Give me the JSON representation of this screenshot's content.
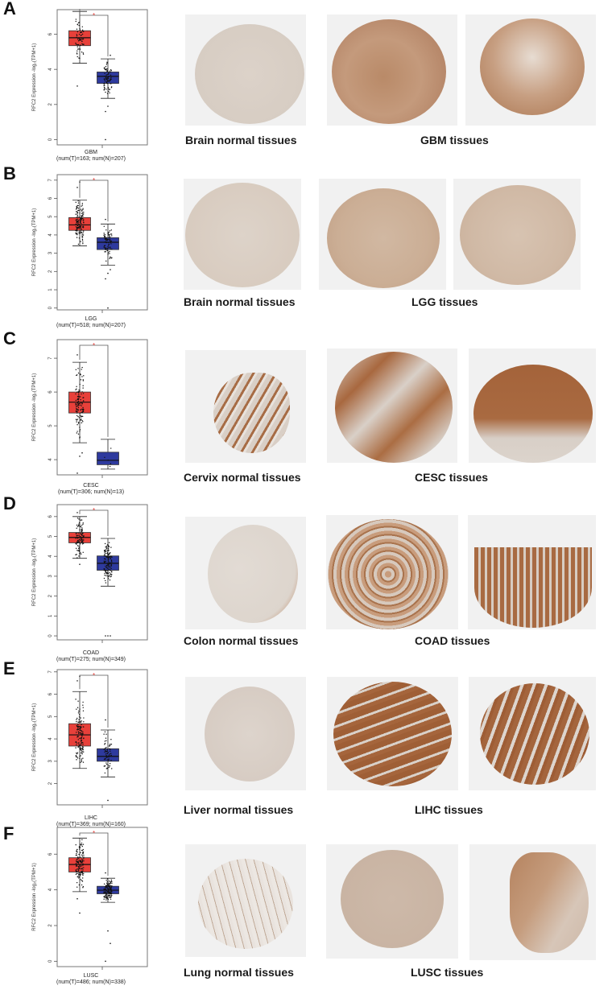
{
  "figure": {
    "gene": "RFC2",
    "ylabel": "RFC2 Expression -log₂(TPM+1)",
    "significance_marker": "*",
    "tumor_color": "#e8403a",
    "normal_color": "#2e3a9e"
  },
  "panels": [
    {
      "letter": "A",
      "cancer": "GBM",
      "counts": "(num(T)=163; num(N)=207)",
      "normal_caption": "Brain normal tissues",
      "tumor_caption": "GBM tissues"
    },
    {
      "letter": "B",
      "cancer": "LGG",
      "counts": "(num(T)=518; num(N)=207)",
      "normal_caption": "Brain normal tissues",
      "tumor_caption": "LGG tissues"
    },
    {
      "letter": "C",
      "cancer": "CESC",
      "counts": "(num(T)=306; num(N)=13)",
      "normal_caption": "Cervix normal tissues",
      "tumor_caption": "CESC tissues"
    },
    {
      "letter": "D",
      "cancer": "COAD",
      "counts": "(num(T)=275; num(N)=349)",
      "normal_caption": "Colon normal tissues",
      "tumor_caption": "COAD tissues"
    },
    {
      "letter": "E",
      "cancer": "LIHC",
      "counts": "(num(T)=369; num(N)=160)",
      "normal_caption": "Liver normal tissues",
      "tumor_caption": "LIHC tissues"
    },
    {
      "letter": "F",
      "cancer": "LUSC",
      "counts": "(num(T)=486; num(N)=338)",
      "normal_caption": "Lung normal tissues",
      "tumor_caption": "LUSC tissues"
    }
  ],
  "chart_data": [
    {
      "type": "box",
      "title": "GBM",
      "xlabel": "GBM",
      "ylabel": "RFC2 Expression -log2(TPM+1)",
      "yticks": [
        0,
        2,
        4,
        6
      ],
      "ylim": [
        -0.3,
        7.4
      ],
      "series": [
        {
          "name": "Tumor",
          "n": 163,
          "whisker_low": 4.35,
          "q1": 5.35,
          "median": 5.8,
          "q3": 6.2,
          "whisker_high": 7.3,
          "outliers": [
            3.05
          ]
        },
        {
          "name": "Normal",
          "n": 207,
          "whisker_low": 2.35,
          "q1": 3.2,
          "median": 3.6,
          "q3": 3.85,
          "whisker_high": 4.6,
          "outliers": [
            1.6,
            1.9,
            4.8,
            0.0
          ]
        }
      ],
      "significant": true
    },
    {
      "type": "box",
      "title": "LGG",
      "xlabel": "LGG",
      "ylabel": "RFC2 Expression -log2(TPM+1)",
      "yticks": [
        0,
        1,
        2,
        3,
        4,
        5,
        6,
        7
      ],
      "ylim": [
        -0.1,
        7.3
      ],
      "series": [
        {
          "name": "Tumor",
          "n": 518,
          "whisker_low": 3.4,
          "q1": 4.25,
          "median": 4.55,
          "q3": 4.95,
          "whisker_high": 5.9,
          "outliers": [
            6.6,
            6.9
          ]
        },
        {
          "name": "Normal",
          "n": 207,
          "whisker_low": 2.35,
          "q1": 3.2,
          "median": 3.6,
          "q3": 3.85,
          "whisker_high": 4.6,
          "outliers": [
            1.6,
            1.9,
            2.1,
            4.85,
            0.0
          ]
        }
      ],
      "significant": true
    },
    {
      "type": "box",
      "title": "CESC",
      "xlabel": "CESC",
      "ylabel": "RFC2 Expression -log2(TPM+1)",
      "yticks": [
        4,
        5,
        6,
        7
      ],
      "ylim": [
        3.55,
        7.55
      ],
      "series": [
        {
          "name": "Tumor",
          "n": 306,
          "whisker_low": 4.5,
          "q1": 5.38,
          "median": 5.7,
          "q3": 6.0,
          "whisker_high": 6.88,
          "outliers": [
            7.1,
            4.1,
            4.2,
            3.6
          ]
        },
        {
          "name": "Normal",
          "n": 13,
          "whisker_low": 3.72,
          "q1": 3.85,
          "median": 3.98,
          "q3": 4.22,
          "whisker_high": 4.6,
          "outliers": []
        }
      ],
      "significant": true
    },
    {
      "type": "box",
      "title": "COAD",
      "xlabel": "COAD",
      "ylabel": "RFC2 Expression -log2(TPM+1)",
      "yticks": [
        0,
        1,
        2,
        3,
        4,
        5,
        6
      ],
      "ylim": [
        -0.2,
        6.6
      ],
      "series": [
        {
          "name": "Tumor",
          "n": 275,
          "whisker_low": 3.9,
          "q1": 4.68,
          "median": 4.95,
          "q3": 5.2,
          "whisker_high": 6.0,
          "outliers": [
            6.2,
            3.6
          ]
        },
        {
          "name": "Normal",
          "n": 349,
          "whisker_low": 2.5,
          "q1": 3.3,
          "median": 3.65,
          "q3": 4.02,
          "whisker_high": 4.9,
          "outliers": [
            0.0,
            0.0,
            0.0
          ]
        }
      ],
      "significant": true
    },
    {
      "type": "box",
      "title": "LIHC",
      "xlabel": "LIHC",
      "ylabel": "RFC2 Expression -log2(TPM+1)",
      "yticks": [
        2,
        3,
        4,
        5,
        6,
        7
      ],
      "ylim": [
        1.05,
        7.1
      ],
      "series": [
        {
          "name": "Tumor",
          "n": 369,
          "whisker_low": 2.68,
          "q1": 3.68,
          "median": 4.18,
          "q3": 4.68,
          "whisker_high": 6.12,
          "outliers": [
            6.6,
            6.8
          ]
        },
        {
          "name": "Normal",
          "n": 160,
          "whisker_low": 2.3,
          "q1": 3.0,
          "median": 3.22,
          "q3": 3.56,
          "whisker_high": 4.4,
          "outliers": [
            4.85,
            1.25
          ]
        }
      ],
      "significant": true
    },
    {
      "type": "box",
      "title": "LUSC",
      "xlabel": "LUSC",
      "ylabel": "RFC2 Expression -log2(TPM+1)",
      "yticks": [
        0,
        2,
        4,
        6
      ],
      "ylim": [
        -0.3,
        7.5
      ],
      "series": [
        {
          "name": "Tumor",
          "n": 486,
          "whisker_low": 3.9,
          "q1": 5.0,
          "median": 5.42,
          "q3": 5.8,
          "whisker_high": 6.9,
          "outliers": [
            3.5,
            2.7
          ]
        },
        {
          "name": "Normal",
          "n": 338,
          "whisker_low": 3.3,
          "q1": 3.78,
          "median": 3.98,
          "q3": 4.2,
          "whisker_high": 4.65,
          "outliers": [
            4.95,
            1.7,
            1.0,
            0.0
          ]
        }
      ],
      "significant": true
    }
  ]
}
